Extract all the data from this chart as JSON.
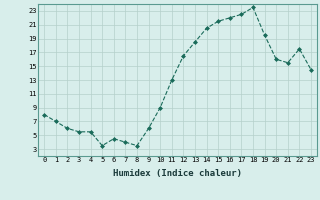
{
  "x": [
    0,
    1,
    2,
    3,
    4,
    5,
    6,
    7,
    8,
    9,
    10,
    11,
    12,
    13,
    14,
    15,
    16,
    17,
    18,
    19,
    20,
    21,
    22,
    23
  ],
  "y": [
    8,
    7,
    6,
    5.5,
    5.5,
    3.5,
    4.5,
    4,
    3.5,
    6,
    9,
    13,
    16.5,
    18.5,
    20.5,
    21.5,
    22,
    22.5,
    23.5,
    19.5,
    16,
    15.5,
    17.5,
    14.5
  ],
  "line_color": "#1a6b5a",
  "marker": "D",
  "marker_size": 2,
  "bg_color": "#d8eeeb",
  "grid_color": "#b5d0cb",
  "xlabel": "Humidex (Indice chaleur)",
  "xlim": [
    -0.5,
    23.5
  ],
  "ylim": [
    2,
    24
  ],
  "yticks": [
    3,
    5,
    7,
    9,
    11,
    13,
    15,
    17,
    19,
    21,
    23
  ],
  "xticks": [
    0,
    1,
    2,
    3,
    4,
    5,
    6,
    7,
    8,
    9,
    10,
    11,
    12,
    13,
    14,
    15,
    16,
    17,
    18,
    19,
    20,
    21,
    22,
    23
  ],
  "tick_fontsize": 5,
  "label_fontsize": 6.5,
  "spine_color": "#5a9a90"
}
